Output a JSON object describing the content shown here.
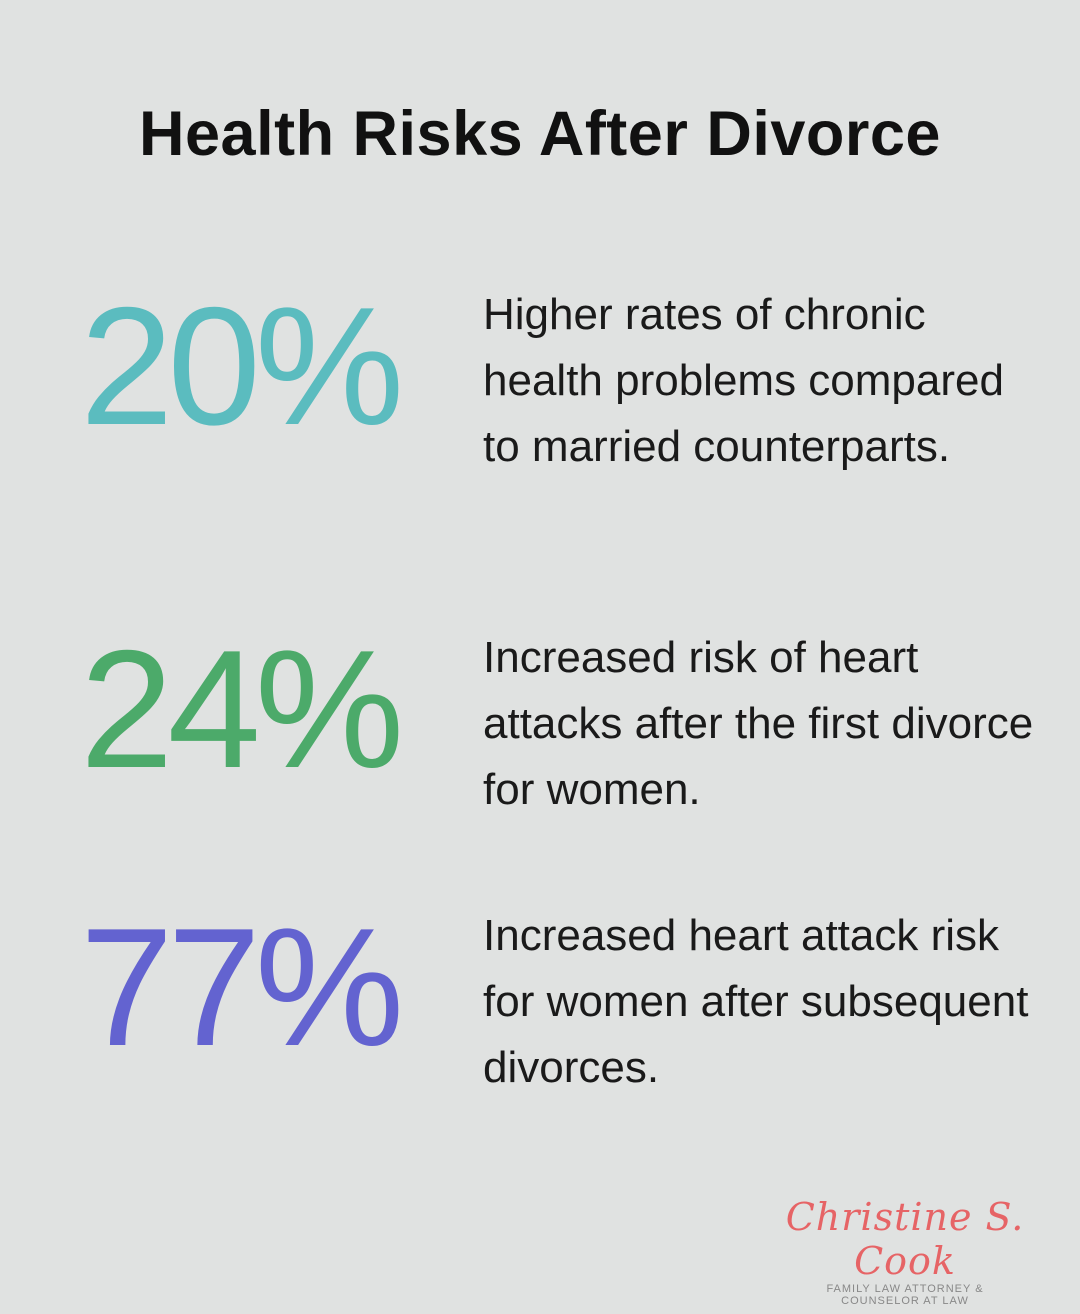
{
  "title": "Health Risks After Divorce",
  "colors": {
    "background": "#e0e2e1",
    "stat1": "#5bbcbf",
    "stat2": "#4caa6a",
    "stat3": "#6363d0",
    "logo": "#e66466"
  },
  "stats": [
    {
      "value": "20%",
      "description": "Higher rates of chronic health problems compared to married counterparts."
    },
    {
      "value": "24%",
      "description": "Increased risk of heart attacks after the first divorce for women."
    },
    {
      "value": "77%",
      "description": "Increased heart attack risk for women after subsequent divorces."
    }
  ],
  "logo": {
    "name": "Christine S. Cook",
    "line1": "FAMILY LAW ATTORNEY &",
    "line2": "COUNSELOR AT LAW"
  }
}
